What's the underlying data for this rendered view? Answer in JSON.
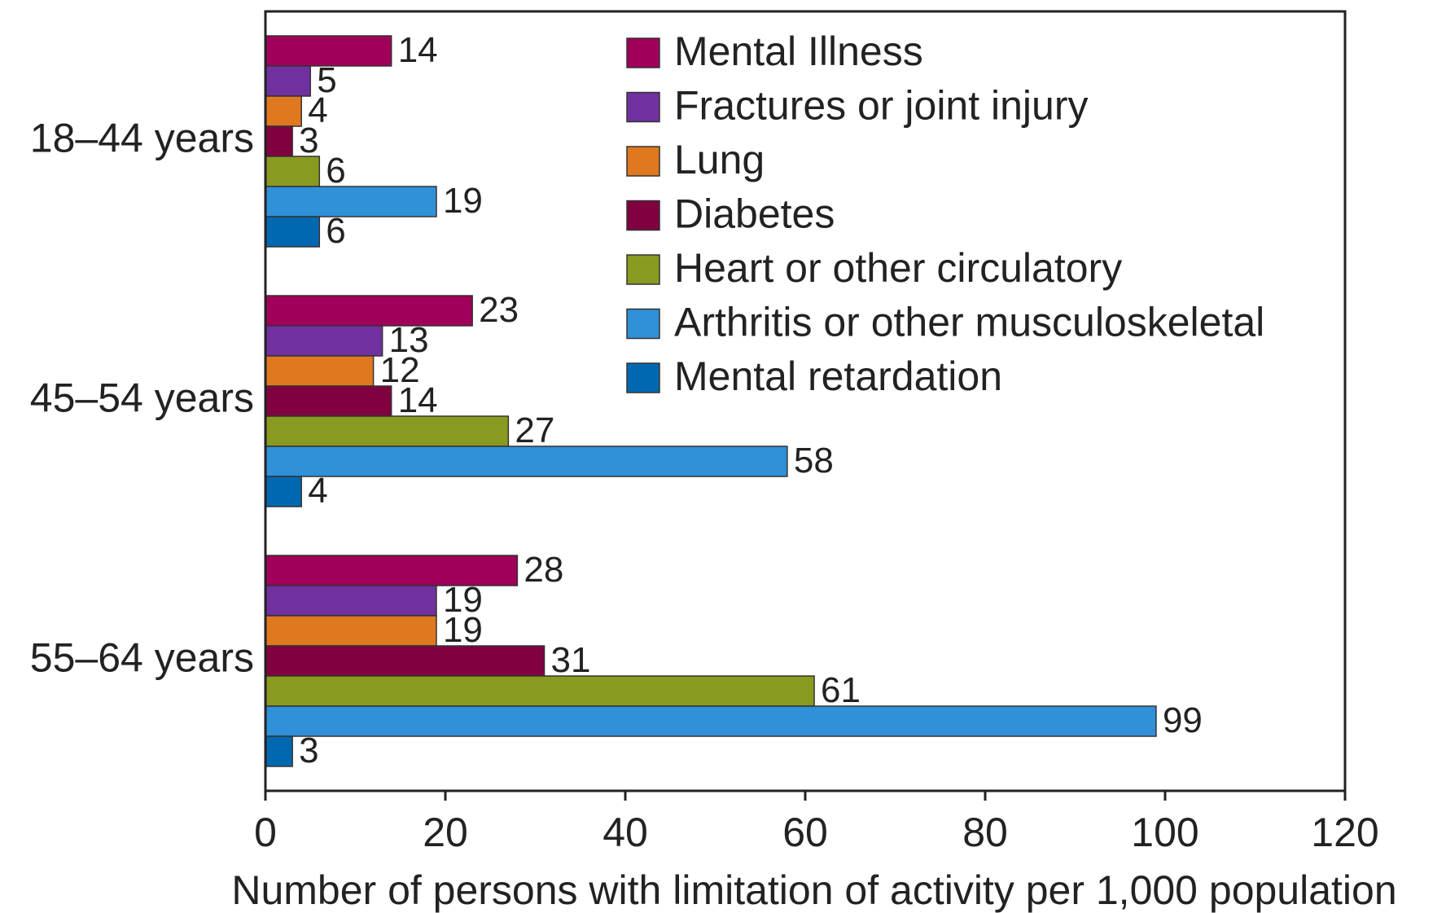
{
  "chart_data": {
    "type": "bar",
    "orientation": "horizontal",
    "x_label": "Number of persons with limitation of activity per 1,000 population",
    "categories": [
      "18–44 years",
      "45–54 years",
      "55–64 years"
    ],
    "series": [
      {
        "name": "Mental Illness",
        "color": "#a0005a",
        "values": [
          14,
          23,
          28
        ]
      },
      {
        "name": "Fractures or joint injury",
        "color": "#7030a0",
        "values": [
          5,
          13,
          19
        ]
      },
      {
        "name": "Lung",
        "color": "#e07820",
        "values": [
          4,
          12,
          19
        ]
      },
      {
        "name": "Diabetes",
        "color": "#800040",
        "values": [
          3,
          14,
          31
        ]
      },
      {
        "name": "Heart or other circulatory",
        "color": "#8a9a20",
        "values": [
          6,
          27,
          61
        ]
      },
      {
        "name": "Arthritis or other musculoskeletal",
        "color": "#3090d8",
        "values": [
          19,
          58,
          99
        ]
      },
      {
        "name": "Mental retardation",
        "color": "#0068b0",
        "values": [
          6,
          4,
          3
        ]
      }
    ],
    "xlim": [
      0,
      120
    ],
    "xticks": [
      0,
      20,
      40,
      60,
      80,
      100,
      120
    ],
    "legend": "top-right"
  }
}
